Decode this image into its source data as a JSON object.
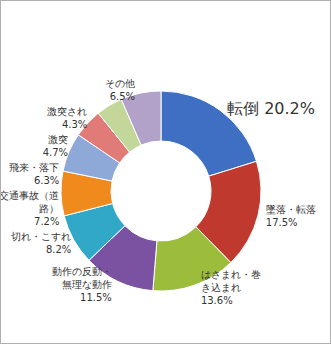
{
  "chart_data": {
    "type": "donut",
    "categories": [
      "転倒",
      "墜落・転落",
      "はさまれ・巻き込まれ",
      "動作の反動・無理な動作",
      "切れ・こすれ",
      "交通事故（道路）",
      "飛来・落下",
      "激突",
      "激突され",
      "その他"
    ],
    "values": [
      20.2,
      17.5,
      13.6,
      11.5,
      8.2,
      7.2,
      6.3,
      4.7,
      4.3,
      6.5
    ],
    "value_labels": [
      "20.2%",
      "17.5%",
      "13.6%",
      "11.5%",
      "8.2%",
      "7.2%",
      "6.3%",
      "4.7%",
      "4.3%",
      "6.5%"
    ],
    "colors": [
      "#3e6fc2",
      "#c0392f",
      "#9cbc3b",
      "#7b51a1",
      "#32a8c8",
      "#f08a1d",
      "#8ea9d8",
      "#e07b77",
      "#c4d79b",
      "#b2a1c8"
    ],
    "data_labels": true
  }
}
